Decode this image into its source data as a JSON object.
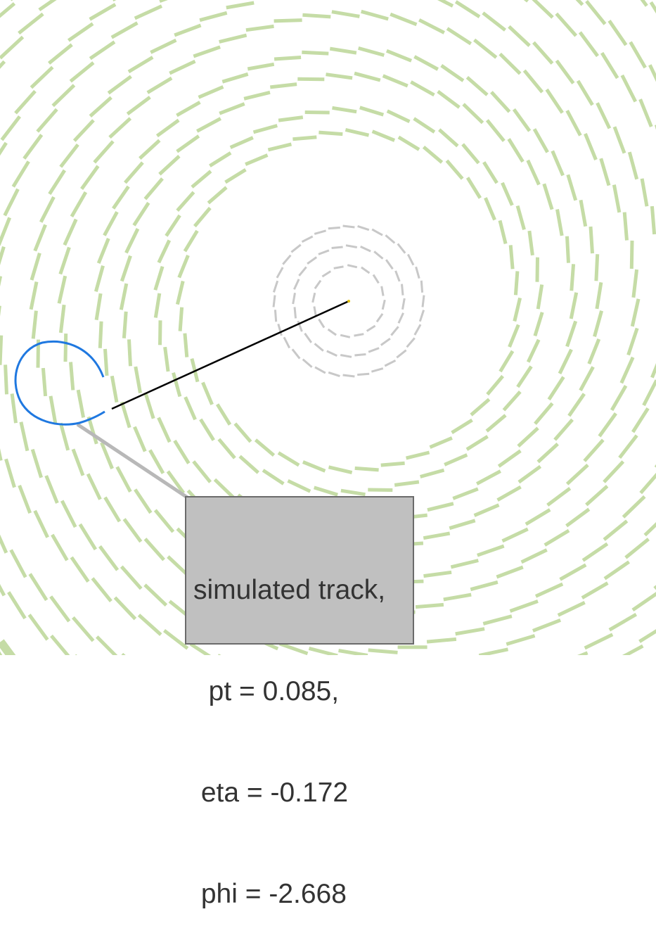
{
  "colors": {
    "background": "#ffffff",
    "outer_modules": "#c5dca6",
    "inner_modules": "#c8c8c8",
    "track_curve": "#1f78e0",
    "connector_line": "#000000",
    "label_box_fill": "#c0c0c0",
    "label_box_border": "#6b6b6b",
    "leader_line": "#b8b8b8",
    "vertex": "#e0c000"
  },
  "label": {
    "line1": "simulated track,",
    "line2": "  pt = 0.085,",
    "line3": " eta = -0.172",
    "line4": " phi = -2.668"
  }
}
